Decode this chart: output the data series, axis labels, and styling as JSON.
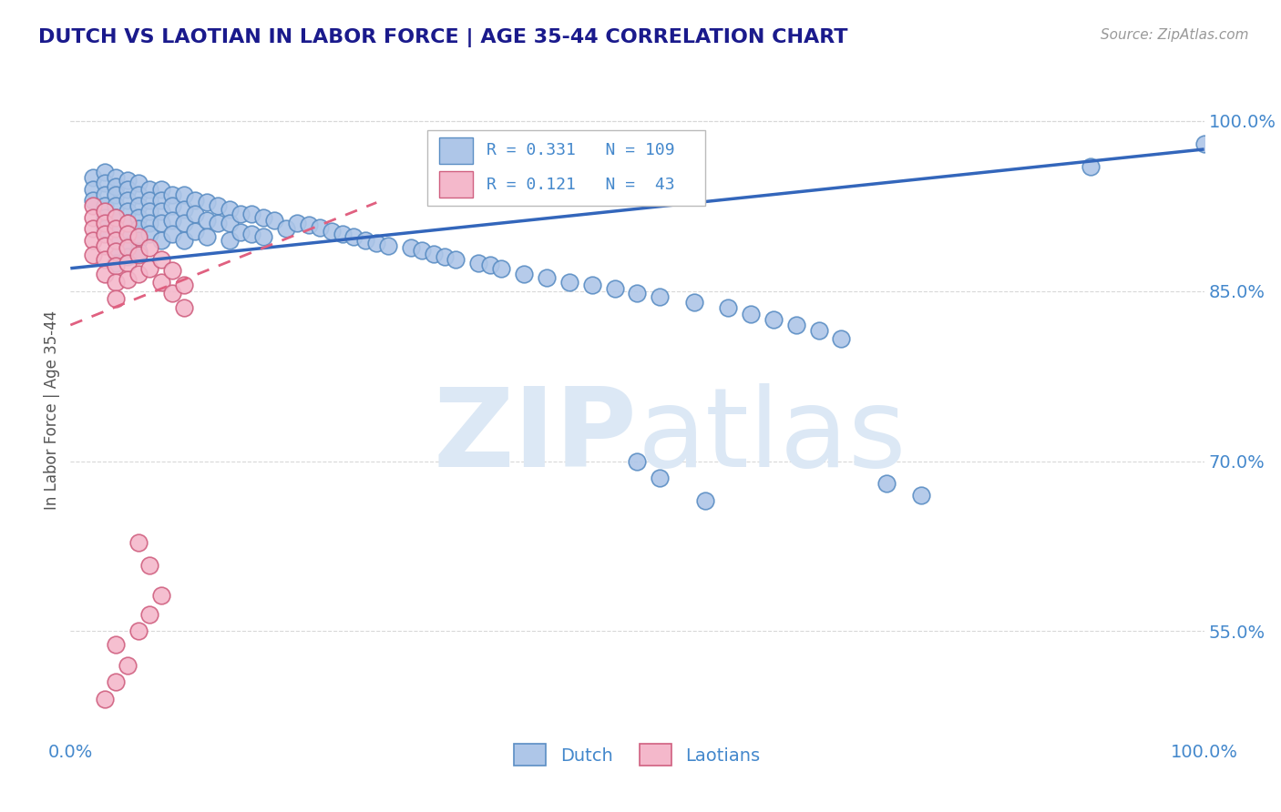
{
  "title": "DUTCH VS LAOTIAN IN LABOR FORCE | AGE 35-44 CORRELATION CHART",
  "source_text": "Source: ZipAtlas.com",
  "ylabel": "In Labor Force | Age 35-44",
  "xlim": [
    0.0,
    1.0
  ],
  "ylim": [
    0.455,
    1.035
  ],
  "x_tick_labels": [
    "0.0%",
    "100.0%"
  ],
  "y_tick_labels": [
    "55.0%",
    "70.0%",
    "85.0%",
    "100.0%"
  ],
  "y_tick_positions": [
    0.55,
    0.7,
    0.85,
    1.0
  ],
  "dutch_R": 0.331,
  "dutch_N": 109,
  "laotian_R": 0.121,
  "laotian_N": 43,
  "dutch_color": "#aec6e8",
  "dutch_edge_color": "#5b8ec4",
  "laotian_color": "#f4b8cb",
  "laotian_edge_color": "#d06080",
  "trend_dutch_color": "#3366bb",
  "trend_laotian_color": "#e06080",
  "background_color": "#ffffff",
  "watermark_color": "#dce8f5",
  "grid_color": "#d8d8d8",
  "title_color": "#1a1a8c",
  "tick_color": "#4488cc",
  "ylabel_color": "#555555",
  "source_color": "#999999",
  "legend_text_color": "#4488cc",
  "dutch_x": [
    0.02,
    0.02,
    0.02,
    0.03,
    0.03,
    0.03,
    0.03,
    0.03,
    0.03,
    0.04,
    0.04,
    0.04,
    0.04,
    0.04,
    0.04,
    0.04,
    0.04,
    0.04,
    0.05,
    0.05,
    0.05,
    0.05,
    0.05,
    0.05,
    0.05,
    0.05,
    0.06,
    0.06,
    0.06,
    0.06,
    0.06,
    0.06,
    0.06,
    0.07,
    0.07,
    0.07,
    0.07,
    0.07,
    0.08,
    0.08,
    0.08,
    0.08,
    0.08,
    0.09,
    0.09,
    0.09,
    0.09,
    0.1,
    0.1,
    0.1,
    0.1,
    0.11,
    0.11,
    0.11,
    0.12,
    0.12,
    0.12,
    0.13,
    0.13,
    0.14,
    0.14,
    0.14,
    0.15,
    0.15,
    0.16,
    0.16,
    0.17,
    0.17,
    0.18,
    0.19,
    0.2,
    0.21,
    0.22,
    0.23,
    0.24,
    0.25,
    0.26,
    0.27,
    0.28,
    0.3,
    0.31,
    0.32,
    0.33,
    0.34,
    0.36,
    0.37,
    0.38,
    0.4,
    0.42,
    0.44,
    0.46,
    0.48,
    0.5,
    0.52,
    0.55,
    0.58,
    0.6,
    0.62,
    0.64,
    0.66,
    0.68,
    0.5,
    0.52,
    0.56,
    0.72,
    0.75,
    0.9,
    1.0
  ],
  "dutch_y": [
    0.95,
    0.94,
    0.93,
    0.955,
    0.945,
    0.935,
    0.925,
    0.915,
    0.905,
    0.95,
    0.942,
    0.935,
    0.925,
    0.915,
    0.905,
    0.895,
    0.885,
    0.875,
    0.948,
    0.94,
    0.93,
    0.92,
    0.91,
    0.9,
    0.89,
    0.88,
    0.945,
    0.935,
    0.925,
    0.915,
    0.905,
    0.895,
    0.885,
    0.94,
    0.93,
    0.92,
    0.91,
    0.9,
    0.94,
    0.93,
    0.92,
    0.91,
    0.895,
    0.935,
    0.925,
    0.912,
    0.9,
    0.935,
    0.922,
    0.91,
    0.895,
    0.93,
    0.918,
    0.903,
    0.928,
    0.912,
    0.898,
    0.925,
    0.91,
    0.922,
    0.91,
    0.895,
    0.918,
    0.902,
    0.918,
    0.9,
    0.915,
    0.898,
    0.912,
    0.905,
    0.91,
    0.908,
    0.906,
    0.903,
    0.9,
    0.898,
    0.895,
    0.892,
    0.89,
    0.888,
    0.886,
    0.883,
    0.88,
    0.878,
    0.875,
    0.873,
    0.87,
    0.865,
    0.862,
    0.858,
    0.855,
    0.852,
    0.848,
    0.845,
    0.84,
    0.835,
    0.83,
    0.825,
    0.82,
    0.815,
    0.808,
    0.7,
    0.685,
    0.665,
    0.68,
    0.67,
    0.96,
    0.98
  ],
  "laotian_x": [
    0.02,
    0.02,
    0.02,
    0.02,
    0.02,
    0.03,
    0.03,
    0.03,
    0.03,
    0.03,
    0.03,
    0.04,
    0.04,
    0.04,
    0.04,
    0.04,
    0.04,
    0.04,
    0.05,
    0.05,
    0.05,
    0.05,
    0.05,
    0.06,
    0.06,
    0.06,
    0.07,
    0.07,
    0.08,
    0.08,
    0.09,
    0.09,
    0.1,
    0.1,
    0.06,
    0.07,
    0.03,
    0.04,
    0.05,
    0.04,
    0.06,
    0.07,
    0.08
  ],
  "laotian_y": [
    0.925,
    0.915,
    0.905,
    0.895,
    0.882,
    0.92,
    0.91,
    0.9,
    0.89,
    0.878,
    0.865,
    0.915,
    0.905,
    0.895,
    0.885,
    0.872,
    0.858,
    0.843,
    0.91,
    0.9,
    0.888,
    0.875,
    0.86,
    0.898,
    0.882,
    0.865,
    0.888,
    0.87,
    0.878,
    0.858,
    0.868,
    0.848,
    0.855,
    0.835,
    0.628,
    0.608,
    0.49,
    0.505,
    0.52,
    0.538,
    0.55,
    0.565,
    0.582
  ]
}
